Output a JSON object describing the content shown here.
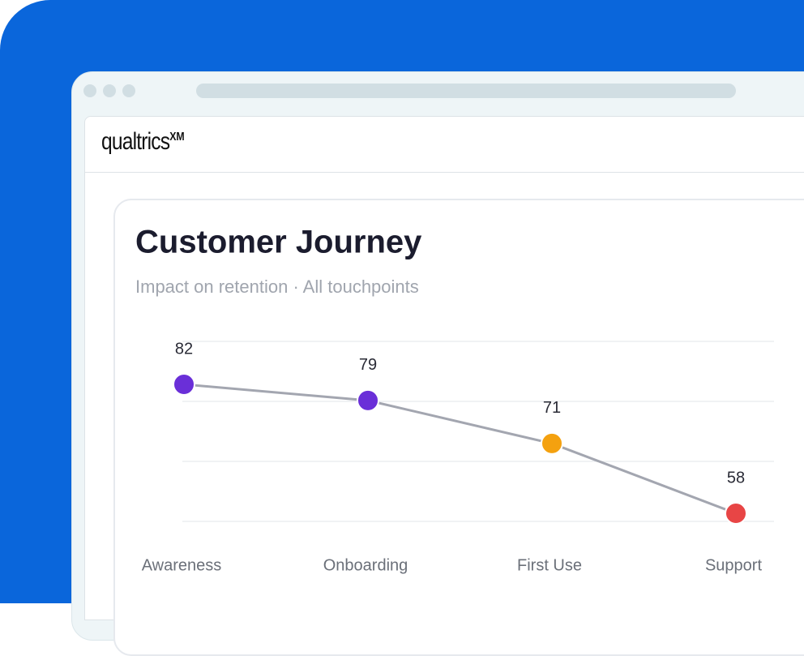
{
  "brand": {
    "name": "qualtrics",
    "mark": "XM"
  },
  "chart_data": {
    "type": "line",
    "title": "Customer Journey",
    "subtitle": "Impact on retention · All touchpoints",
    "categories": [
      "Awareness",
      "Onboarding",
      "First Use",
      "Support"
    ],
    "values": [
      82,
      79,
      71,
      58
    ],
    "point_colors": [
      "#6a2fd8",
      "#6a2fd8",
      "#f4a10f",
      "#e84545"
    ],
    "color": "#a3a6b0",
    "ylim": [
      56.5,
      90
    ]
  }
}
